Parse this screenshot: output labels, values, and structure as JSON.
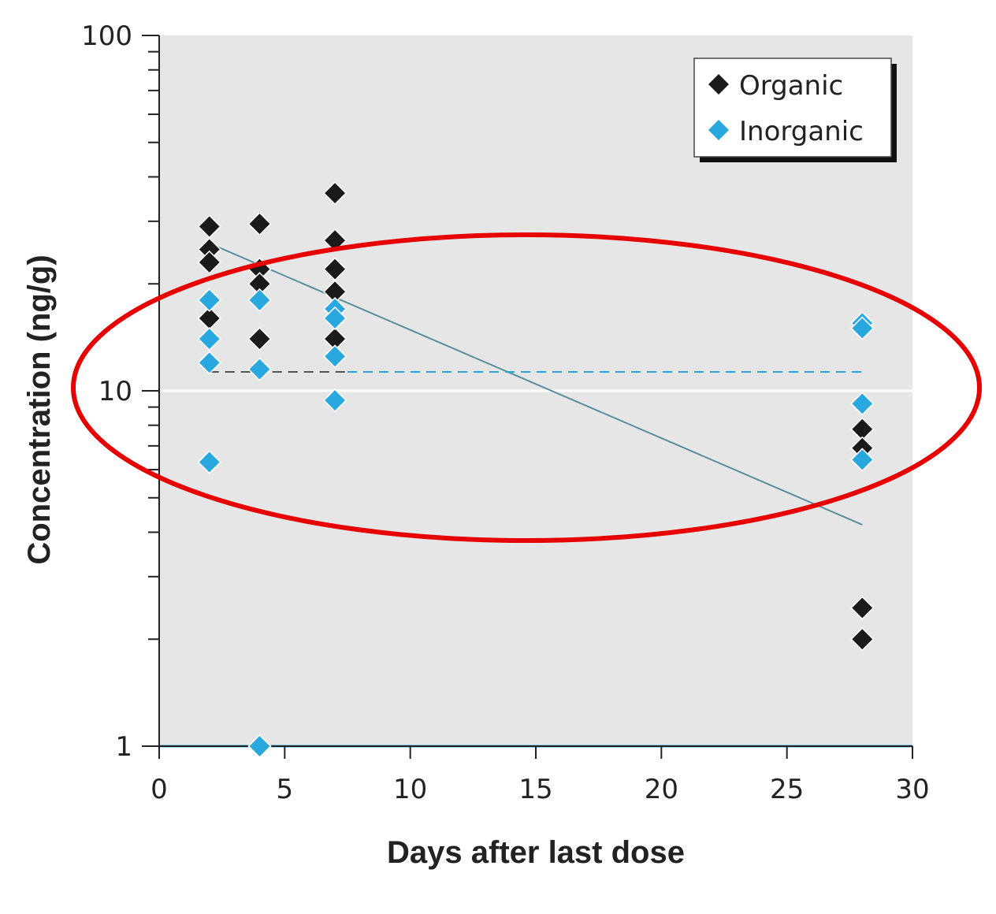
{
  "chart_data": {
    "type": "scatter",
    "title": "",
    "xlabel": "Days after last dose",
    "ylabel": "Concentration (ng/g)",
    "x_scale": "linear",
    "y_scale": "log",
    "xlim": [
      0,
      30
    ],
    "ylim": [
      1,
      100
    ],
    "x_ticks": [
      0,
      5,
      10,
      15,
      20,
      25,
      30
    ],
    "x_tick_labels": [
      "0",
      "5",
      "10",
      "15",
      "20",
      "25",
      "30"
    ],
    "y_ticks": [
      1,
      10,
      100
    ],
    "y_tick_labels": [
      "1",
      "10",
      "100"
    ],
    "grid": false,
    "plot_background": "#e6e6e6",
    "legend_position": "top-right",
    "series": [
      {
        "name": "Organic",
        "color": "#1a1a1a",
        "marker": "diamond",
        "points": [
          {
            "x": 2,
            "y": 29
          },
          {
            "x": 2,
            "y": 25
          },
          {
            "x": 2,
            "y": 23
          },
          {
            "x": 2,
            "y": 16
          },
          {
            "x": 4,
            "y": 29.5
          },
          {
            "x": 4,
            "y": 22
          },
          {
            "x": 4,
            "y": 20
          },
          {
            "x": 4,
            "y": 14
          },
          {
            "x": 7,
            "y": 36
          },
          {
            "x": 7,
            "y": 26.5
          },
          {
            "x": 7,
            "y": 22
          },
          {
            "x": 7,
            "y": 19
          },
          {
            "x": 7,
            "y": 14
          },
          {
            "x": 28,
            "y": 7.8
          },
          {
            "x": 28,
            "y": 6.9
          },
          {
            "x": 28,
            "y": 2.45
          },
          {
            "x": 28,
            "y": 2.0
          }
        ]
      },
      {
        "name": "Inorganic",
        "color": "#29a8e0",
        "marker": "diamond",
        "points": [
          {
            "x": 2,
            "y": 18
          },
          {
            "x": 2,
            "y": 14
          },
          {
            "x": 2,
            "y": 12
          },
          {
            "x": 2,
            "y": 6.3
          },
          {
            "x": 4,
            "y": 18
          },
          {
            "x": 4,
            "y": 11.5
          },
          {
            "x": 4,
            "y": 1.0
          },
          {
            "x": 7,
            "y": 17
          },
          {
            "x": 7,
            "y": 16
          },
          {
            "x": 7,
            "y": 12.5
          },
          {
            "x": 7,
            "y": 9.4
          },
          {
            "x": 28,
            "y": 15.5
          },
          {
            "x": 28,
            "y": 15
          },
          {
            "x": 28,
            "y": 9.2
          },
          {
            "x": 28,
            "y": 6.4
          }
        ]
      }
    ],
    "fit_lines": [
      {
        "series": "Organic",
        "style": "solid",
        "color": "#5a8fa0",
        "from": [
          2,
          26
        ],
        "to": [
          28,
          4.2
        ]
      },
      {
        "series": "Inorganic",
        "style": "dashed",
        "color_left": "#555555",
        "color_right": "#29a8e0",
        "from": [
          2,
          11.3
        ],
        "to": [
          28,
          11.3
        ]
      },
      {
        "series": "Inorganic",
        "style": "solid",
        "color": "#29a8e0",
        "from": [
          0,
          1.0
        ],
        "to": [
          30,
          1.0
        ]
      }
    ],
    "reference_line": {
      "y": 10,
      "color": "#ffffff"
    },
    "annotation": {
      "type": "ellipse",
      "color": "#e80000"
    }
  }
}
